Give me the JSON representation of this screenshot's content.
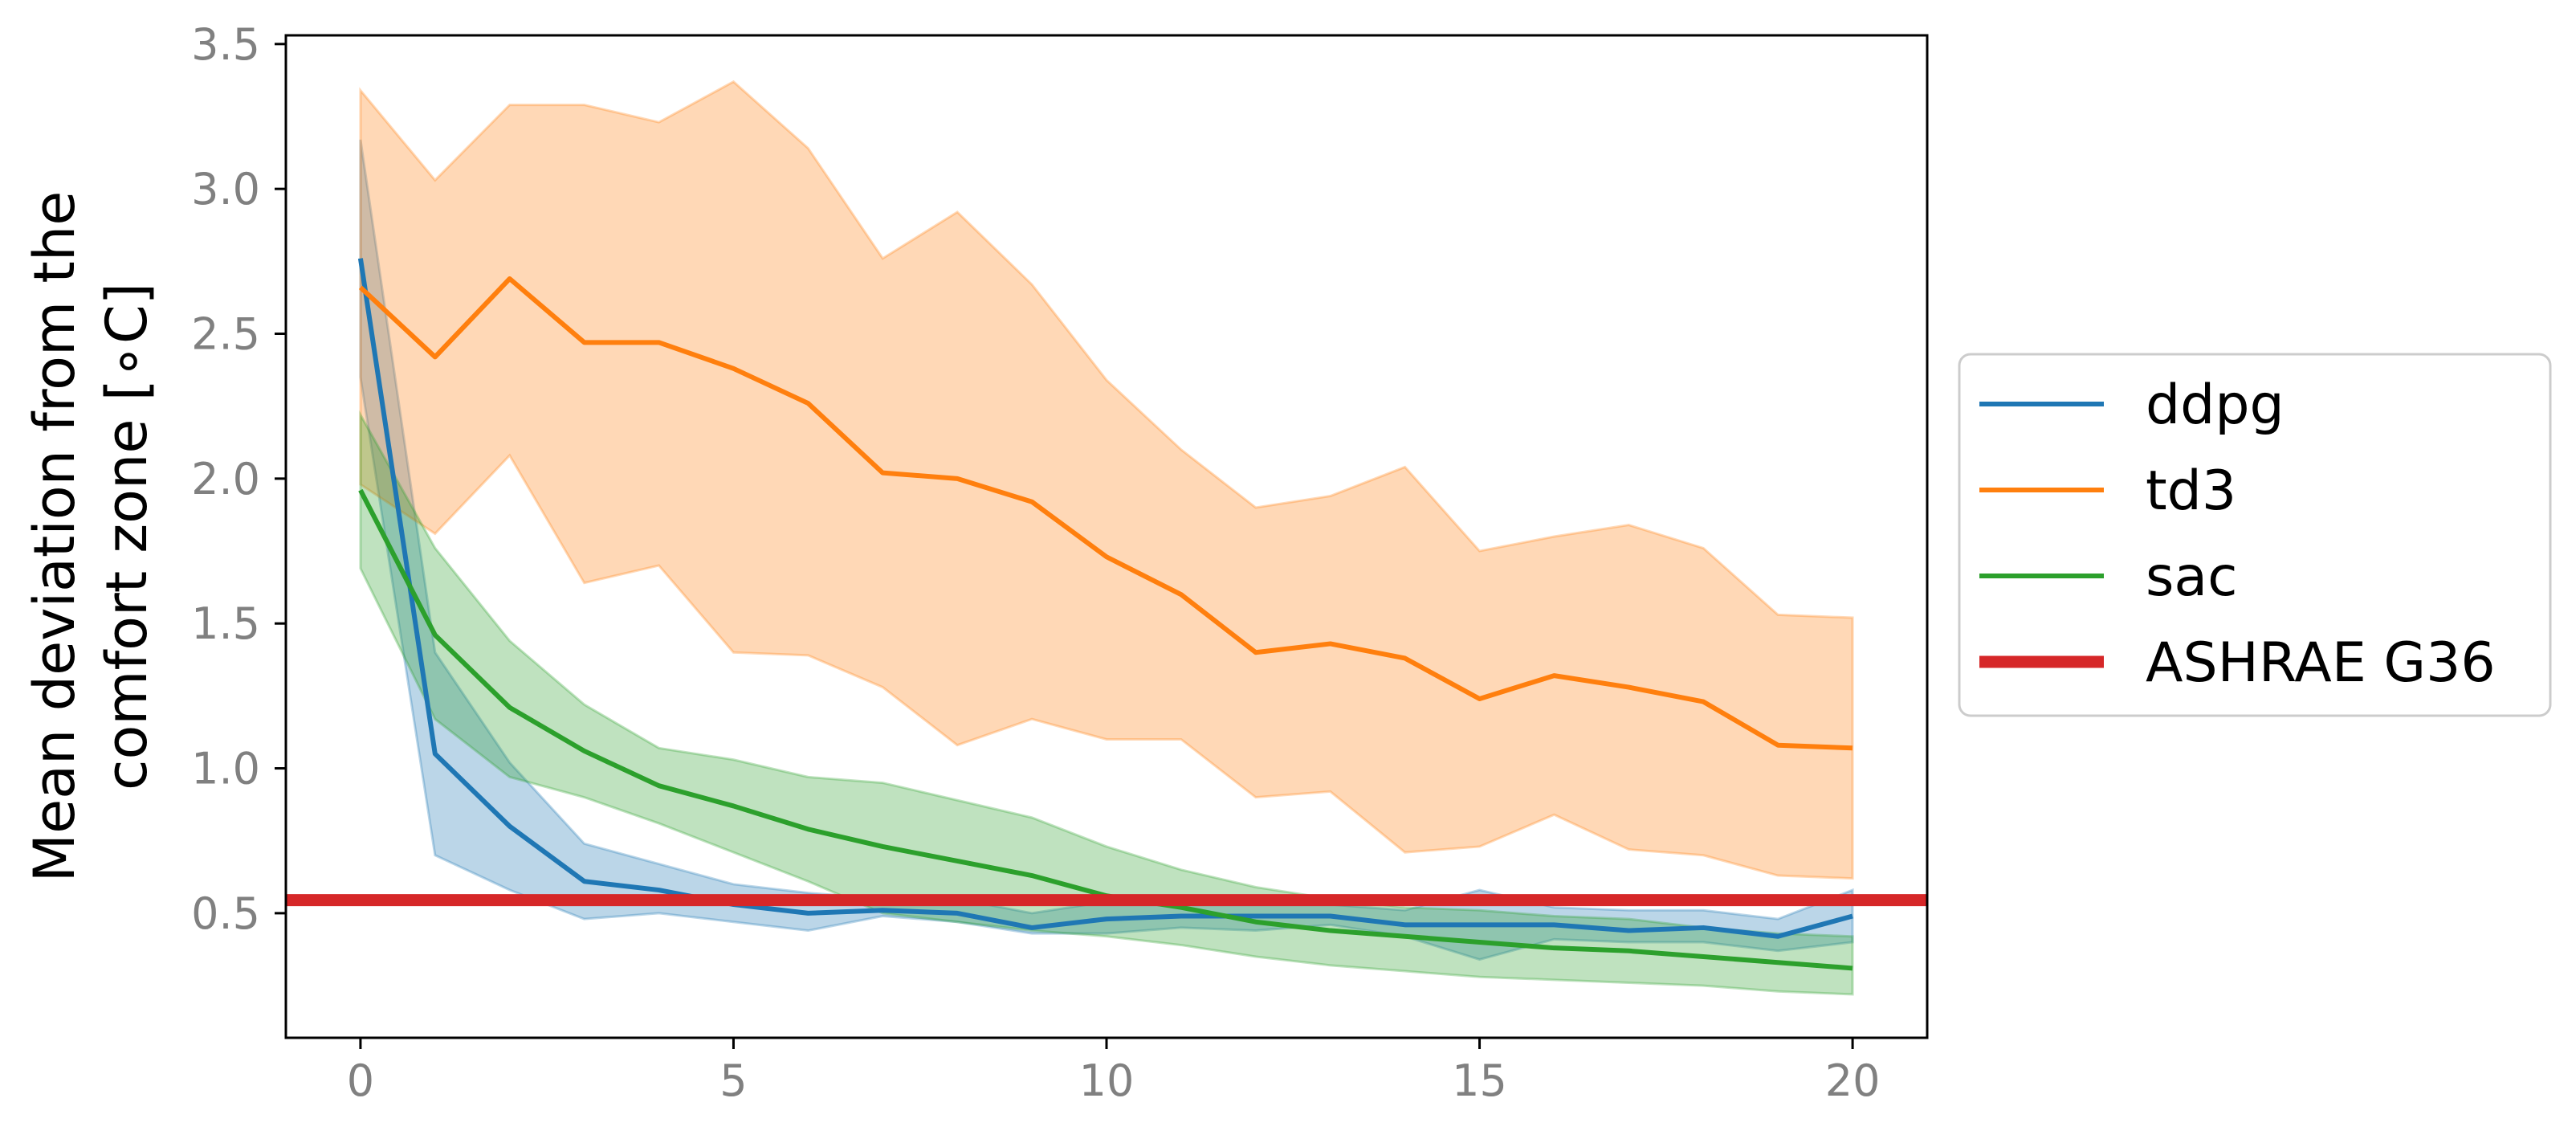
{
  "chart_data": {
    "type": "line",
    "title": "",
    "xlabel": "",
    "ylabel_lines": [
      "Mean deviation from the",
      "comfort zone [∘C]"
    ],
    "xlim": [
      -1,
      21
    ],
    "ylim": [
      0.07,
      3.53
    ],
    "xticks": [
      0,
      5,
      10,
      15,
      20
    ],
    "yticks": [
      0.5,
      1.0,
      1.5,
      2.0,
      2.5,
      3.0,
      3.5
    ],
    "ytick_labels": [
      "0.5",
      "1.0",
      "1.5",
      "2.0",
      "2.5",
      "3.0",
      "3.5"
    ],
    "grid": false,
    "legend_placement": "outside-right",
    "x": [
      0,
      1,
      2,
      3,
      4,
      5,
      6,
      7,
      8,
      9,
      10,
      11,
      12,
      13,
      14,
      15,
      16,
      17,
      18,
      19,
      20
    ],
    "series": [
      {
        "name": "ddpg",
        "color": "#1f77b4",
        "values": [
          2.76,
          1.05,
          0.8,
          0.61,
          0.58,
          0.53,
          0.5,
          0.51,
          0.5,
          0.45,
          0.48,
          0.49,
          0.49,
          0.49,
          0.46,
          0.46,
          0.46,
          0.44,
          0.45,
          0.42,
          0.49
        ],
        "lower": [
          2.35,
          0.7,
          0.58,
          0.48,
          0.5,
          0.47,
          0.44,
          0.49,
          0.47,
          0.43,
          0.43,
          0.45,
          0.44,
          0.46,
          0.42,
          0.34,
          0.41,
          0.4,
          0.4,
          0.37,
          0.4
        ],
        "upper": [
          3.17,
          1.4,
          1.02,
          0.74,
          0.67,
          0.6,
          0.57,
          0.55,
          0.55,
          0.5,
          0.54,
          0.53,
          0.55,
          0.53,
          0.51,
          0.58,
          0.52,
          0.51,
          0.51,
          0.48,
          0.58
        ]
      },
      {
        "name": "td3",
        "color": "#ff7f0e",
        "values": [
          2.66,
          2.42,
          2.69,
          2.47,
          2.47,
          2.38,
          2.26,
          2.02,
          2.0,
          1.92,
          1.73,
          1.6,
          1.4,
          1.43,
          1.38,
          1.24,
          1.32,
          1.28,
          1.23,
          1.08,
          1.07
        ],
        "lower": [
          1.98,
          1.81,
          2.08,
          1.64,
          1.7,
          1.4,
          1.39,
          1.28,
          1.08,
          1.17,
          1.1,
          1.1,
          0.9,
          0.92,
          0.71,
          0.73,
          0.84,
          0.72,
          0.7,
          0.63,
          0.62
        ],
        "upper": [
          3.34,
          3.03,
          3.29,
          3.29,
          3.23,
          3.37,
          3.14,
          2.76,
          2.92,
          2.67,
          2.34,
          2.1,
          1.9,
          1.94,
          2.04,
          1.75,
          1.8,
          1.84,
          1.76,
          1.53,
          1.52
        ]
      },
      {
        "name": "sac",
        "color": "#2ca02c",
        "values": [
          1.96,
          1.46,
          1.21,
          1.06,
          0.94,
          0.87,
          0.79,
          0.73,
          0.68,
          0.63,
          0.56,
          0.52,
          0.47,
          0.44,
          0.42,
          0.4,
          0.38,
          0.37,
          0.35,
          0.33,
          0.31
        ],
        "lower": [
          1.69,
          1.17,
          0.97,
          0.9,
          0.81,
          0.71,
          0.61,
          0.5,
          0.47,
          0.44,
          0.42,
          0.39,
          0.35,
          0.32,
          0.3,
          0.28,
          0.27,
          0.26,
          0.25,
          0.23,
          0.22
        ],
        "upper": [
          2.22,
          1.76,
          1.44,
          1.22,
          1.07,
          1.03,
          0.97,
          0.95,
          0.89,
          0.83,
          0.73,
          0.65,
          0.59,
          0.55,
          0.52,
          0.51,
          0.49,
          0.48,
          0.45,
          0.43,
          0.42
        ]
      }
    ],
    "reference_lines": [
      {
        "name": "ASHRAE G36",
        "y": 0.545,
        "color": "#d62728"
      }
    ]
  }
}
